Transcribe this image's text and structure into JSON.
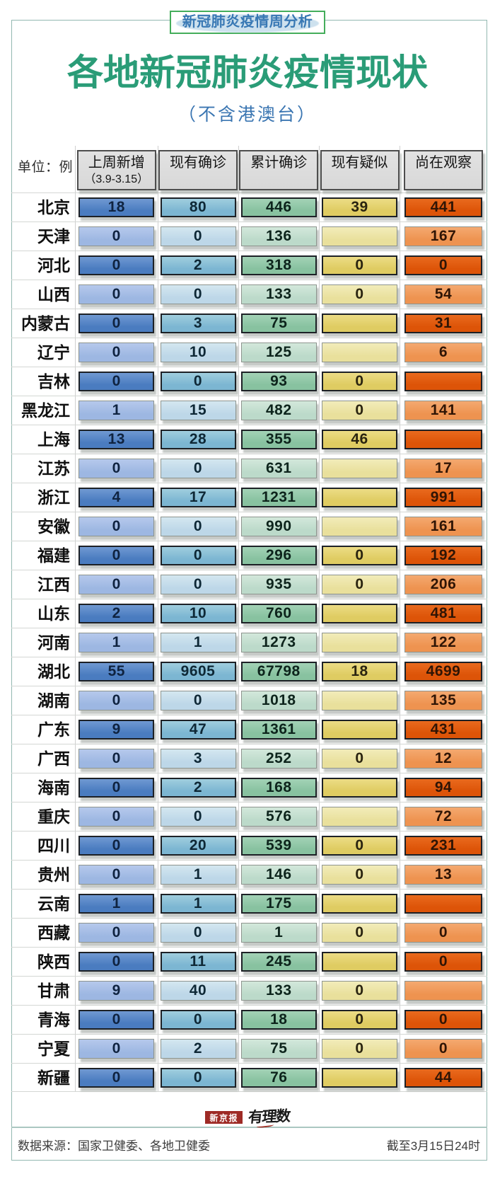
{
  "badge": {
    "text": "新冠肺炎疫情周分析"
  },
  "header": {
    "title": "各地新冠肺炎疫情现状",
    "subtitle": "（不含港澳台）"
  },
  "table": {
    "unit_label": "单位：例",
    "columns": [
      {
        "title": "上周新增",
        "subtitle": "（3.9-3.15）"
      },
      {
        "title": "现有确诊",
        "subtitle": ""
      },
      {
        "title": "累计确诊",
        "subtitle": ""
      },
      {
        "title": "现有疑似",
        "subtitle": ""
      },
      {
        "title": "尚在观察",
        "subtitle": ""
      }
    ],
    "rows": [
      {
        "province": "北京",
        "values": [
          "18",
          "80",
          "446",
          "39",
          "441"
        ]
      },
      {
        "province": "天津",
        "values": [
          "0",
          "0",
          "136",
          "",
          "167"
        ]
      },
      {
        "province": "河北",
        "values": [
          "0",
          "2",
          "318",
          "0",
          "0"
        ]
      },
      {
        "province": "山西",
        "values": [
          "0",
          "0",
          "133",
          "0",
          "54"
        ]
      },
      {
        "province": "内蒙古",
        "values": [
          "0",
          "3",
          "75",
          "",
          "31"
        ]
      },
      {
        "province": "辽宁",
        "values": [
          "0",
          "10",
          "125",
          "",
          "6"
        ]
      },
      {
        "province": "吉林",
        "values": [
          "0",
          "0",
          "93",
          "0",
          ""
        ]
      },
      {
        "province": "黑龙江",
        "values": [
          "1",
          "15",
          "482",
          "0",
          "141"
        ]
      },
      {
        "province": "上海",
        "values": [
          "13",
          "28",
          "355",
          "46",
          ""
        ]
      },
      {
        "province": "江苏",
        "values": [
          "0",
          "0",
          "631",
          "",
          "17"
        ]
      },
      {
        "province": "浙江",
        "values": [
          "4",
          "17",
          "1231",
          "",
          "991"
        ]
      },
      {
        "province": "安徽",
        "values": [
          "0",
          "0",
          "990",
          "",
          "161"
        ]
      },
      {
        "province": "福建",
        "values": [
          "0",
          "0",
          "296",
          "0",
          "192"
        ]
      },
      {
        "province": "江西",
        "values": [
          "0",
          "0",
          "935",
          "0",
          "206"
        ]
      },
      {
        "province": "山东",
        "values": [
          "2",
          "10",
          "760",
          "",
          "481"
        ]
      },
      {
        "province": "河南",
        "values": [
          "1",
          "1",
          "1273",
          "",
          "122"
        ]
      },
      {
        "province": "湖北",
        "values": [
          "55",
          "9605",
          "67798",
          "18",
          "4699"
        ]
      },
      {
        "province": "湖南",
        "values": [
          "0",
          "0",
          "1018",
          "",
          "135"
        ]
      },
      {
        "province": "广东",
        "values": [
          "9",
          "47",
          "1361",
          "",
          "431"
        ]
      },
      {
        "province": "广西",
        "values": [
          "0",
          "3",
          "252",
          "0",
          "12"
        ]
      },
      {
        "province": "海南",
        "values": [
          "0",
          "2",
          "168",
          "",
          "94"
        ]
      },
      {
        "province": "重庆",
        "values": [
          "0",
          "0",
          "576",
          "",
          "72"
        ]
      },
      {
        "province": "四川",
        "values": [
          "0",
          "20",
          "539",
          "0",
          "231"
        ]
      },
      {
        "province": "贵州",
        "values": [
          "0",
          "1",
          "146",
          "0",
          "13"
        ]
      },
      {
        "province": "云南",
        "values": [
          "1",
          "1",
          "175",
          "",
          ""
        ]
      },
      {
        "province": "西藏",
        "values": [
          "0",
          "0",
          "1",
          "0",
          "0"
        ]
      },
      {
        "province": "陕西",
        "values": [
          "0",
          "11",
          "245",
          "",
          "0"
        ]
      },
      {
        "province": "甘肃",
        "values": [
          "9",
          "40",
          "133",
          "0",
          ""
        ]
      },
      {
        "province": "青海",
        "values": [
          "0",
          "0",
          "18",
          "0",
          "0"
        ]
      },
      {
        "province": "宁夏",
        "values": [
          "0",
          "2",
          "75",
          "0",
          "0"
        ]
      },
      {
        "province": "新疆",
        "values": [
          "0",
          "0",
          "76",
          "",
          "44"
        ]
      }
    ]
  },
  "colors": {
    "accent_green": "#2a9c77",
    "accent_blue": "#3b76b2",
    "badge_border": "#44ad5b",
    "columns": [
      {
        "dark": [
          "#7099d2",
          "#4a7cc0"
        ],
        "light": [
          "#b6c9ec",
          "#9db7e2"
        ],
        "text": "#0f2340"
      },
      {
        "dark": [
          "#a0cede",
          "#7cb6d2"
        ],
        "light": [
          "#d4e7f0",
          "#bdd7e8"
        ],
        "text": "#0e2836"
      },
      {
        "dark": [
          "#a3d2b6",
          "#88c2a0"
        ],
        "light": [
          "#d3e8db",
          "#bcdaca"
        ],
        "text": "#0d241c"
      },
      {
        "dark": [
          "#ecdc85",
          "#dfcc62"
        ],
        "light": [
          "#f2ecba",
          "#e9e09c"
        ],
        "text": "#2a2410"
      },
      {
        "dark": [
          "#e96a1e",
          "#dd5408"
        ],
        "light": [
          "#f4a970",
          "#ee9350"
        ],
        "text": "#301505"
      }
    ]
  },
  "footer": {
    "brand_primary": "新京报",
    "brand_secondary": "有理数",
    "source": "数据来源：国家卫健委、各地卫健委",
    "as_of": "截至3月15日24时"
  },
  "chart_data": {
    "type": "table",
    "title": "各地新冠肺炎疫情现状",
    "subtitle": "（不含港澳台）",
    "unit": "例",
    "categories": [
      "北京",
      "天津",
      "河北",
      "山西",
      "内蒙古",
      "辽宁",
      "吉林",
      "黑龙江",
      "上海",
      "江苏",
      "浙江",
      "安徽",
      "福建",
      "江西",
      "山东",
      "河南",
      "湖北",
      "湖南",
      "广东",
      "广西",
      "海南",
      "重庆",
      "四川",
      "贵州",
      "云南",
      "西藏",
      "陕西",
      "甘肃",
      "青海",
      "宁夏",
      "新疆"
    ],
    "series": [
      {
        "name": "上周新增（3.9-3.15）",
        "values": [
          18,
          0,
          0,
          0,
          0,
          0,
          0,
          1,
          13,
          0,
          4,
          0,
          0,
          0,
          2,
          1,
          55,
          0,
          9,
          0,
          0,
          0,
          0,
          0,
          1,
          0,
          0,
          9,
          0,
          0,
          0
        ]
      },
      {
        "name": "现有确诊",
        "values": [
          80,
          0,
          2,
          0,
          3,
          10,
          0,
          15,
          28,
          0,
          17,
          0,
          0,
          0,
          10,
          1,
          9605,
          0,
          47,
          3,
          2,
          0,
          20,
          1,
          1,
          0,
          11,
          40,
          0,
          2,
          0
        ]
      },
      {
        "name": "累计确诊",
        "values": [
          446,
          136,
          318,
          133,
          75,
          125,
          93,
          482,
          355,
          631,
          1231,
          990,
          296,
          935,
          760,
          1273,
          67798,
          1018,
          1361,
          252,
          168,
          576,
          539,
          146,
          175,
          1,
          245,
          133,
          18,
          75,
          76
        ]
      },
      {
        "name": "现有疑似",
        "values": [
          39,
          null,
          0,
          0,
          null,
          null,
          0,
          0,
          46,
          null,
          null,
          null,
          0,
          0,
          null,
          null,
          18,
          null,
          null,
          0,
          null,
          null,
          0,
          0,
          null,
          0,
          null,
          0,
          0,
          0,
          null
        ]
      },
      {
        "name": "尚在观察",
        "values": [
          441,
          167,
          0,
          54,
          31,
          6,
          null,
          141,
          null,
          17,
          991,
          161,
          192,
          206,
          481,
          122,
          4699,
          135,
          431,
          12,
          94,
          72,
          231,
          13,
          null,
          0,
          0,
          null,
          0,
          0,
          44
        ]
      }
    ],
    "legend_position": "none",
    "grid": true
  }
}
